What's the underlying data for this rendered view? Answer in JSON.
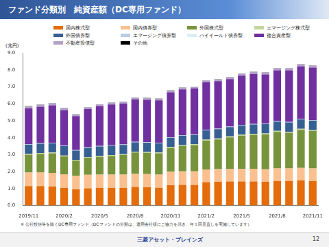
{
  "header": {
    "title": "ファンド分類別　純資産額（DC専用ファンド）"
  },
  "chart_data": {
    "type": "bar",
    "stacked": true,
    "y_label": "(兆円)",
    "categories": [
      "2019/11",
      null,
      null,
      "2020/2",
      null,
      null,
      "2020/5",
      null,
      null,
      "2020/8",
      null,
      null,
      "2020/11",
      null,
      null,
      "2021/2",
      null,
      null,
      "2021/5",
      null,
      null,
      "2021/8",
      null,
      null,
      "2021/11"
    ],
    "series": [
      {
        "name": "国内株式型",
        "color": "#e46c0a",
        "values": [
          1.15,
          1.15,
          1.13,
          1.05,
          0.95,
          1.02,
          1.05,
          1.05,
          1.05,
          1.1,
          1.08,
          1.05,
          1.2,
          1.22,
          1.22,
          1.38,
          1.4,
          1.42,
          1.42,
          1.42,
          1.4,
          1.45,
          1.45,
          1.48,
          1.45
        ]
      },
      {
        "name": "国内債券型",
        "color": "#fac090",
        "values": [
          0.8,
          0.8,
          0.8,
          0.8,
          0.8,
          0.8,
          0.78,
          0.78,
          0.78,
          0.78,
          0.78,
          0.78,
          0.8,
          0.8,
          0.8,
          0.75,
          0.75,
          0.75,
          0.75,
          0.75,
          0.74,
          0.74,
          0.74,
          0.74,
          0.74
        ]
      },
      {
        "name": "外国株式型",
        "color": "#77933c",
        "values": [
          1.05,
          1.1,
          1.15,
          1.05,
          0.9,
          1.0,
          1.05,
          1.1,
          1.15,
          1.25,
          1.25,
          1.25,
          1.4,
          1.5,
          1.55,
          1.7,
          1.75,
          1.85,
          1.95,
          2.0,
          2.05,
          2.15,
          2.1,
          2.25,
          2.2
        ]
      },
      {
        "name": "エマージング株式型",
        "color": "#c3d69b",
        "values": [
          0.05,
          0.05,
          0.05,
          0.05,
          0.04,
          0.04,
          0.05,
          0.05,
          0.05,
          0.05,
          0.05,
          0.05,
          0.05,
          0.05,
          0.05,
          0.06,
          0.06,
          0.06,
          0.06,
          0.06,
          0.06,
          0.06,
          0.06,
          0.06,
          0.06
        ]
      },
      {
        "name": "外国債券型",
        "color": "#376092",
        "values": [
          0.55,
          0.55,
          0.55,
          0.55,
          0.55,
          0.55,
          0.55,
          0.55,
          0.55,
          0.55,
          0.55,
          0.55,
          0.55,
          0.55,
          0.55,
          0.55,
          0.55,
          0.55,
          0.55,
          0.55,
          0.55,
          0.55,
          0.55,
          0.55,
          0.56
        ]
      },
      {
        "name": "エマージング債券型",
        "color": "#b9cde5",
        "values": [
          0.02,
          0.02,
          0.02,
          0.02,
          0.02,
          0.02,
          0.02,
          0.02,
          0.02,
          0.02,
          0.02,
          0.02,
          0.02,
          0.02,
          0.02,
          0.02,
          0.02,
          0.02,
          0.02,
          0.02,
          0.02,
          0.02,
          0.02,
          0.02,
          0.02
        ]
      },
      {
        "name": "ハイイールド債券型",
        "color": "#dbeef4",
        "values": [
          0.01,
          0.01,
          0.01,
          0.01,
          0.01,
          0.01,
          0.01,
          0.01,
          0.01,
          0.01,
          0.01,
          0.01,
          0.01,
          0.01,
          0.01,
          0.01,
          0.01,
          0.01,
          0.01,
          0.01,
          0.01,
          0.01,
          0.01,
          0.01,
          0.01
        ]
      },
      {
        "name": "複合資産型",
        "color": "#7030a0",
        "values": [
          2.1,
          2.15,
          2.2,
          2.1,
          2.0,
          2.25,
          2.35,
          2.4,
          2.4,
          2.5,
          2.5,
          2.5,
          2.65,
          2.7,
          2.7,
          2.8,
          2.8,
          2.8,
          2.9,
          2.95,
          2.9,
          3.0,
          3.05,
          3.1,
          3.1
        ]
      },
      {
        "name": "不動産投信型",
        "color": "#b3a2c7",
        "values": [
          0.12,
          0.12,
          0.12,
          0.11,
          0.1,
          0.1,
          0.1,
          0.1,
          0.1,
          0.1,
          0.1,
          0.1,
          0.1,
          0.1,
          0.1,
          0.11,
          0.11,
          0.11,
          0.12,
          0.12,
          0.12,
          0.12,
          0.12,
          0.12,
          0.12
        ]
      },
      {
        "name": "その他",
        "color": "#000000",
        "values": [
          0.01,
          0.01,
          0.01,
          0.01,
          0.01,
          0.01,
          0.01,
          0.01,
          0.01,
          0.01,
          0.01,
          0.01,
          0.01,
          0.01,
          0.01,
          0.01,
          0.01,
          0.01,
          0.01,
          0.01,
          0.01,
          0.01,
          0.01,
          0.01,
          0.01
        ]
      }
    ],
    "ylim": [
      0,
      9
    ],
    "yticks": [
      {
        "value": 0,
        "label": "0.0"
      },
      {
        "value": 1,
        "label": "1.0"
      },
      {
        "value": 2,
        "label": "2.0"
      },
      {
        "value": 3,
        "label": "3.0"
      },
      {
        "value": 4,
        "label": "4.0"
      },
      {
        "value": 5,
        "label": "5.0"
      },
      {
        "value": 6,
        "label": "6.0"
      },
      {
        "value": 7,
        "label": "7.0"
      },
      {
        "value": 8,
        "label": "8.0"
      },
      {
        "value": 9,
        "label": "9.0"
      }
    ],
    "grid": false,
    "legend": "top"
  },
  "note": "※ 公社投信等を除くDC専用ファンド（DCファンドの分類は、運用会社様にご協力を頂き、年１回見直しを実施しています）",
  "footer": {
    "company": "三菱アセット・ブレインズ",
    "page": 12
  }
}
